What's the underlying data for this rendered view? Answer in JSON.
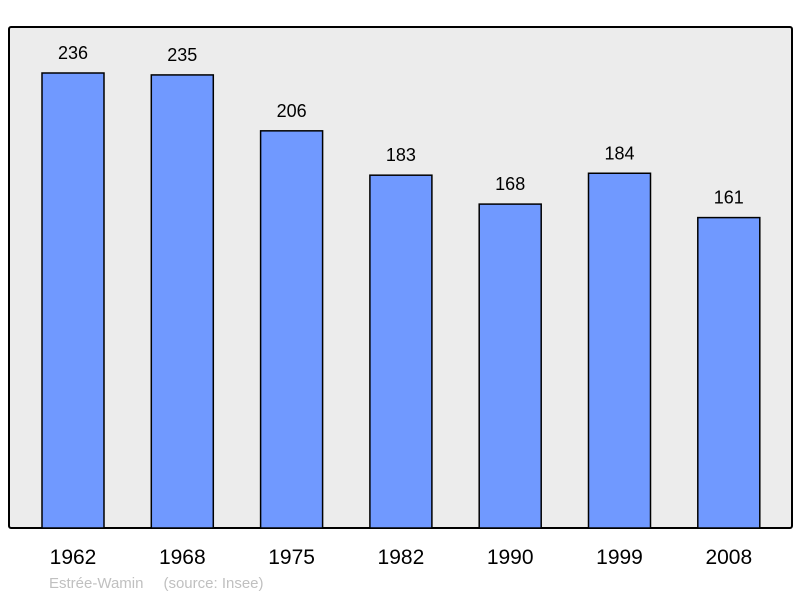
{
  "chart_data": {
    "type": "bar",
    "categories": [
      "1962",
      "1968",
      "1975",
      "1982",
      "1990",
      "1999",
      "2008"
    ],
    "values": [
      236,
      235,
      206,
      183,
      168,
      184,
      161
    ],
    "data_labels": [
      "236",
      "235",
      "206",
      "183",
      "168",
      "184",
      "161"
    ],
    "title": "",
    "xlabel": "",
    "ylabel": "",
    "ylim": [
      0,
      260
    ],
    "grid": false,
    "bar_color": "#7099ff",
    "plot_background": "#ececec"
  },
  "footer": {
    "place": "Estrée-Wamin",
    "source": "(source: Insee)"
  }
}
